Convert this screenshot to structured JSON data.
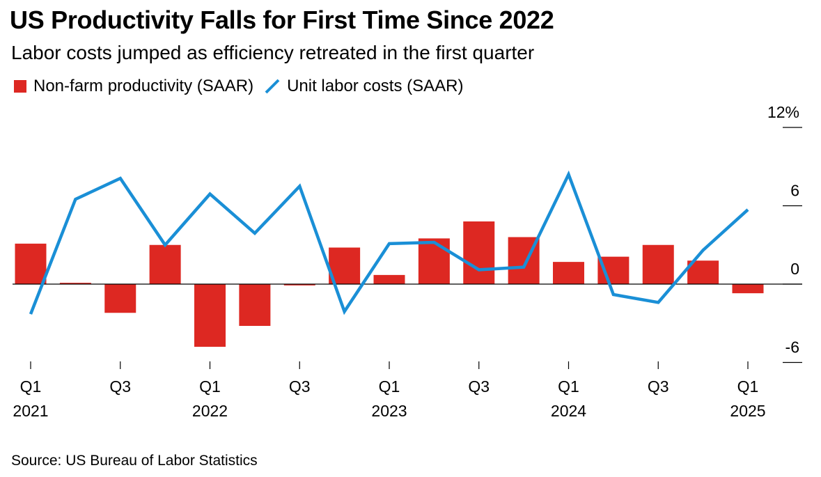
{
  "title": "US Productivity Falls for First Time Since 2022",
  "subtitle": "Labor costs jumped as efficiency retreated in the first quarter",
  "legend": {
    "bars": "Non-farm productivity (SAAR)",
    "line": "Unit labor costs (SAAR)"
  },
  "source": "Source: US Bureau of Labor Statistics",
  "colors": {
    "bar": "#dd2822",
    "line": "#1a8fd6",
    "axis": "#000000"
  },
  "chart_data": {
    "type": "bar+line",
    "title": "US Productivity Falls for First Time Since 2022",
    "subtitle": "Labor costs jumped as efficiency retreated in the first quarter",
    "categories": [
      "Q1 2021",
      "Q2 2021",
      "Q3 2021",
      "Q4 2021",
      "Q1 2022",
      "Q2 2022",
      "Q3 2022",
      "Q4 2022",
      "Q1 2023",
      "Q2 2023",
      "Q3 2023",
      "Q4 2023",
      "Q1 2024",
      "Q2 2024",
      "Q3 2024",
      "Q4 2024",
      "Q1 2025"
    ],
    "series": [
      {
        "name": "Non-farm productivity (SAAR)",
        "type": "bar",
        "values": [
          3.1,
          0.1,
          -2.2,
          3.0,
          -4.8,
          -3.2,
          -0.1,
          2.8,
          0.7,
          3.5,
          4.8,
          3.6,
          1.7,
          2.1,
          3.0,
          1.8,
          -0.7
        ]
      },
      {
        "name": "Unit labor costs (SAAR)",
        "type": "line",
        "values": [
          -2.3,
          6.5,
          8.1,
          3.0,
          6.9,
          3.9,
          7.5,
          -2.1,
          3.1,
          3.2,
          1.1,
          1.3,
          8.4,
          -0.8,
          -1.4,
          2.6,
          5.7
        ]
      }
    ],
    "y_ticks": [
      {
        "value": 12,
        "label": "12%"
      },
      {
        "value": 6,
        "label": "6"
      },
      {
        "value": 0,
        "label": "0"
      },
      {
        "value": -6,
        "label": "-6"
      }
    ],
    "x_ticks": [
      {
        "index": 0,
        "quarter": "Q1",
        "year": "2021"
      },
      {
        "index": 2,
        "quarter": "Q3",
        "year": ""
      },
      {
        "index": 4,
        "quarter": "Q1",
        "year": "2022"
      },
      {
        "index": 6,
        "quarter": "Q3",
        "year": ""
      },
      {
        "index": 8,
        "quarter": "Q1",
        "year": "2023"
      },
      {
        "index": 10,
        "quarter": "Q3",
        "year": ""
      },
      {
        "index": 12,
        "quarter": "Q1",
        "year": "2024"
      },
      {
        "index": 14,
        "quarter": "Q3",
        "year": ""
      },
      {
        "index": 16,
        "quarter": "Q1",
        "year": "2025"
      }
    ],
    "ylim": [
      -6,
      12
    ],
    "legend_position": "top-left"
  }
}
